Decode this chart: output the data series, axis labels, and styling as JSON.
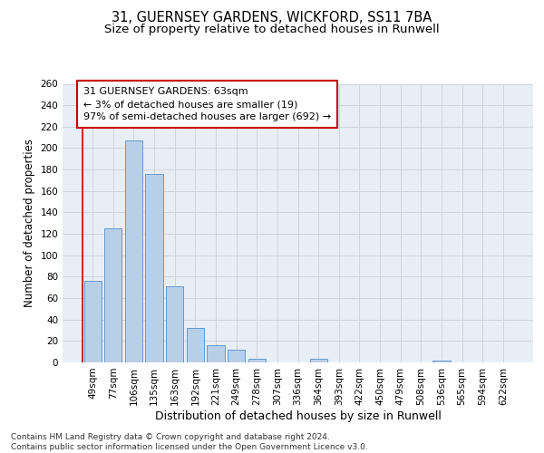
{
  "title_line1": "31, GUERNSEY GARDENS, WICKFORD, SS11 7BA",
  "title_line2": "Size of property relative to detached houses in Runwell",
  "xlabel": "Distribution of detached houses by size in Runwell",
  "ylabel": "Number of detached properties",
  "categories": [
    "49sqm",
    "77sqm",
    "106sqm",
    "135sqm",
    "163sqm",
    "192sqm",
    "221sqm",
    "249sqm",
    "278sqm",
    "307sqm",
    "336sqm",
    "364sqm",
    "393sqm",
    "422sqm",
    "450sqm",
    "479sqm",
    "508sqm",
    "536sqm",
    "565sqm",
    "594sqm",
    "622sqm"
  ],
  "values": [
    76,
    125,
    207,
    176,
    71,
    32,
    16,
    12,
    3,
    0,
    0,
    3,
    0,
    0,
    0,
    0,
    0,
    2,
    0,
    0,
    0
  ],
  "bar_color": "#b8cfe8",
  "bar_edge_color": "#6699cc",
  "annotation_line1": "31 GUERNSEY GARDENS: 63sqm",
  "annotation_line2": "← 3% of detached houses are smaller (19)",
  "annotation_line3": "97% of semi-detached houses are larger (692) →",
  "annotation_box_color": "#ffffff",
  "annotation_box_edge_color": "#cc0000",
  "vline_color": "#cc0000",
  "ylim": [
    0,
    260
  ],
  "yticks": [
    0,
    20,
    40,
    60,
    80,
    100,
    120,
    140,
    160,
    180,
    200,
    220,
    240,
    260
  ],
  "grid_color": "#ccd5e0",
  "background_color": "#e8eef5",
  "footer_text": "Contains HM Land Registry data © Crown copyright and database right 2024.\nContains public sector information licensed under the Open Government Licence v3.0.",
  "title_fontsize": 10.5,
  "subtitle_fontsize": 9.5,
  "xlabel_fontsize": 9,
  "ylabel_fontsize": 8.5,
  "tick_fontsize": 7.5,
  "annotation_fontsize": 8,
  "footer_fontsize": 6.5
}
